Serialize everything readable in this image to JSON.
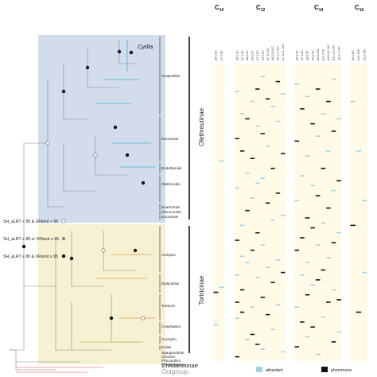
{
  "taxon_label": "Cydia",
  "subfamilies": [
    "Olethreutinae",
    "Tortricinae"
  ],
  "tribes": [
    "Grapholitini",
    "Eucosmini",
    "Endotheniini",
    "Olethreutini",
    "Enarmonini",
    "Microcorsini",
    "Eucosmini",
    "Archipini",
    "Epitymbiini",
    "Tortricini",
    "Cnephasiini",
    "Cochylini",
    "Euliini",
    "Sparganothini",
    "Ceracini",
    "Phricanthini",
    "Schoenotenini"
  ],
  "other_groups": [
    "Chlidanotinae",
    "Outgroup"
  ],
  "support_legend": [
    "SH_aLRT < 80 & UFboot < 95",
    "SH_aLRT ≥ 80 or UFboot ≥ 95",
    "SH_aLRT ≥ 80 & UFboot ≥ 95"
  ],
  "chain_groups": [
    {
      "main": "C",
      "sub": "10",
      "cols": [
        "Δ5:10C",
        "Δ7:10C"
      ]
    },
    {
      "main": "C",
      "sub": "12",
      "cols": [
        "Δ5:12C",
        "Δ7:12C",
        "Δ8:12C",
        "Δ9:12C",
        "Δ7:12C",
        "Δ9:12C",
        "Δ7,9:12C",
        "Δ8,10:12C",
        "Δ9,11:12C",
        "Δ7,9,11:12C"
      ]
    },
    {
      "main": "C",
      "sub": "14",
      "cols": [
        "Δ5:14C",
        "Δ7:14C",
        "Δ8:14C",
        "Δ9:14C",
        "Δ10:14C",
        "Δ11:14C",
        "Δ10,12:14C",
        "Δ11,13:14C",
        "Δ9,11:14C"
      ]
    },
    {
      "main": "C",
      "sub": "16",
      "cols": [
        "Δ9:16C",
        "Δ11:16C",
        "Δ13:16C"
      ]
    }
  ],
  "chart_data": {
    "type": "heatmap",
    "legend": [
      "attractant",
      "pheromone"
    ],
    "colors": {
      "attractant": "#9fd2e6",
      "pheromone": "#111111",
      "background": "#fffbe6"
    },
    "rows": 240,
    "groups": [
      {
        "name": "C10",
        "cells": [
          [
            0,
            184,
            "p"
          ],
          [
            0,
            210,
            "a"
          ],
          [
            1,
            78,
            "a"
          ],
          [
            1,
            180,
            "a"
          ]
        ]
      },
      {
        "name": "C12",
        "cells": [
          [
            0,
            22,
            "a"
          ],
          [
            0,
            60,
            "p"
          ],
          [
            0,
            100,
            "a"
          ],
          [
            0,
            142,
            "p"
          ],
          [
            0,
            170,
            "a"
          ],
          [
            0,
            192,
            "p"
          ],
          [
            0,
            205,
            "a"
          ],
          [
            0,
            236,
            "p"
          ],
          [
            1,
            40,
            "a"
          ],
          [
            1,
            70,
            "p"
          ],
          [
            1,
            130,
            "a"
          ],
          [
            1,
            155,
            "a"
          ],
          [
            1,
            182,
            "p"
          ],
          [
            1,
            200,
            "p"
          ],
          [
            2,
            44,
            "p"
          ],
          [
            2,
            88,
            "a"
          ],
          [
            2,
            118,
            "p"
          ],
          [
            2,
            160,
            "a"
          ],
          [
            2,
            222,
            "a"
          ],
          [
            3,
            30,
            "a"
          ],
          [
            3,
            76,
            "p"
          ],
          [
            3,
            108,
            "a"
          ],
          [
            3,
            150,
            "p"
          ],
          [
            3,
            196,
            "a"
          ],
          [
            3,
            218,
            "p"
          ],
          [
            4,
            20,
            "p"
          ],
          [
            4,
            50,
            "a"
          ],
          [
            4,
            96,
            "a"
          ],
          [
            4,
            136,
            "p"
          ],
          [
            4,
            172,
            "a"
          ],
          [
            4,
            226,
            "p"
          ],
          [
            5,
            10,
            "a"
          ],
          [
            5,
            56,
            "p"
          ],
          [
            5,
            92,
            "a"
          ],
          [
            5,
            146,
            "a"
          ],
          [
            5,
            188,
            "p"
          ],
          [
            5,
            230,
            "a"
          ],
          [
            6,
            28,
            "p"
          ],
          [
            6,
            66,
            "a"
          ],
          [
            6,
            112,
            "p"
          ],
          [
            6,
            164,
            "a"
          ],
          [
            6,
            202,
            "p"
          ],
          [
            7,
            34,
            "a"
          ],
          [
            7,
            84,
            "p"
          ],
          [
            7,
            126,
            "a"
          ],
          [
            7,
            176,
            "p"
          ],
          [
            7,
            214,
            "a"
          ],
          [
            8,
            14,
            "p"
          ],
          [
            8,
            46,
            "a"
          ],
          [
            8,
            104,
            "p"
          ],
          [
            8,
            158,
            "a"
          ],
          [
            8,
            194,
            "a"
          ],
          [
            9,
            24,
            "a"
          ],
          [
            9,
            72,
            "p"
          ],
          [
            9,
            122,
            "a"
          ],
          [
            9,
            168,
            "p"
          ],
          [
            9,
            232,
            "a"
          ]
        ]
      },
      {
        "name": "C14",
        "cells": [
          [
            0,
            16,
            "a"
          ],
          [
            0,
            62,
            "p"
          ],
          [
            0,
            110,
            "a"
          ],
          [
            0,
            150,
            "p"
          ],
          [
            0,
            196,
            "a"
          ],
          [
            0,
            228,
            "p"
          ],
          [
            1,
            36,
            "p"
          ],
          [
            1,
            90,
            "a"
          ],
          [
            1,
            140,
            "p"
          ],
          [
            1,
            170,
            "a"
          ],
          [
            1,
            208,
            "p"
          ],
          [
            2,
            26,
            "a"
          ],
          [
            2,
            74,
            "a"
          ],
          [
            2,
            124,
            "p"
          ],
          [
            2,
            160,
            "a"
          ],
          [
            2,
            186,
            "p"
          ],
          [
            2,
            220,
            "a"
          ],
          [
            3,
            48,
            "p"
          ],
          [
            3,
            98,
            "a"
          ],
          [
            3,
            132,
            "p"
          ],
          [
            3,
            178,
            "a"
          ],
          [
            3,
            212,
            "p"
          ],
          [
            4,
            20,
            "p"
          ],
          [
            4,
            58,
            "a"
          ],
          [
            4,
            106,
            "p"
          ],
          [
            4,
            146,
            "a"
          ],
          [
            4,
            174,
            "p"
          ],
          [
            4,
            234,
            "a"
          ],
          [
            5,
            40,
            "a"
          ],
          [
            5,
            84,
            "p"
          ],
          [
            5,
            128,
            "a"
          ],
          [
            5,
            166,
            "p"
          ],
          [
            5,
            204,
            "a"
          ],
          [
            6,
            30,
            "p"
          ],
          [
            6,
            70,
            "a"
          ],
          [
            6,
            116,
            "p"
          ],
          [
            6,
            156,
            "a"
          ],
          [
            6,
            192,
            "p"
          ],
          [
            7,
            12,
            "a"
          ],
          [
            7,
            54,
            "p"
          ],
          [
            7,
            102,
            "a"
          ],
          [
            7,
            144,
            "p"
          ],
          [
            7,
            182,
            "a"
          ],
          [
            7,
            224,
            "p"
          ],
          [
            8,
            44,
            "a"
          ],
          [
            8,
            94,
            "p"
          ],
          [
            8,
            136,
            "a"
          ],
          [
            8,
            190,
            "p"
          ],
          [
            8,
            216,
            "a"
          ]
        ]
      },
      {
        "name": "C16",
        "cells": [
          [
            0,
            30,
            "a"
          ],
          [
            0,
            130,
            "p"
          ],
          [
            1,
            70,
            "a"
          ],
          [
            1,
            200,
            "p"
          ],
          [
            2,
            110,
            "a"
          ],
          [
            2,
            168,
            "a"
          ]
        ]
      }
    ]
  }
}
